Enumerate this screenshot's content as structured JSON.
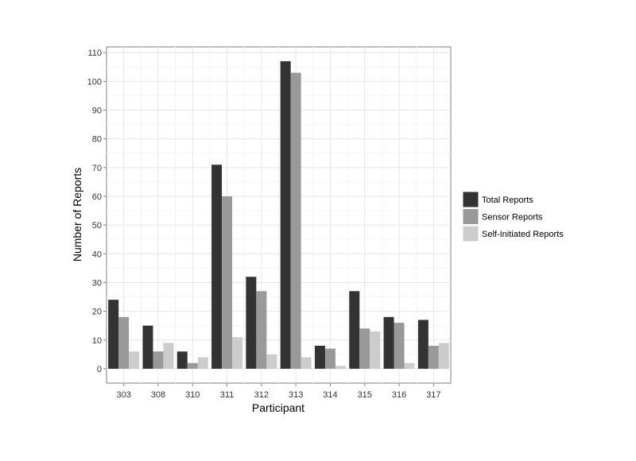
{
  "chart_data": {
    "type": "bar",
    "title": "",
    "xlabel": "Participant",
    "ylabel": "Number of Reports",
    "categories": [
      "303",
      "308",
      "310",
      "311",
      "312",
      "313",
      "314",
      "315",
      "316",
      "317"
    ],
    "series": [
      {
        "name": "Total Reports",
        "color": "#333333",
        "values": [
          24,
          15,
          6,
          71,
          32,
          107,
          8,
          27,
          18,
          17
        ]
      },
      {
        "name": "Sensor Reports",
        "color": "#999999",
        "values": [
          18,
          6,
          2,
          60,
          27,
          103,
          7,
          14,
          16,
          8
        ]
      },
      {
        "name": "Self-Initiated Reports",
        "color": "#cccccc",
        "values": [
          6,
          9,
          4,
          11,
          5,
          4,
          1,
          13,
          2,
          9
        ]
      }
    ],
    "ylim": [
      -5,
      112
    ],
    "yticks": [
      0,
      10,
      20,
      30,
      40,
      50,
      60,
      70,
      80,
      90,
      100,
      110
    ],
    "grid": true,
    "legend_position": "right"
  }
}
